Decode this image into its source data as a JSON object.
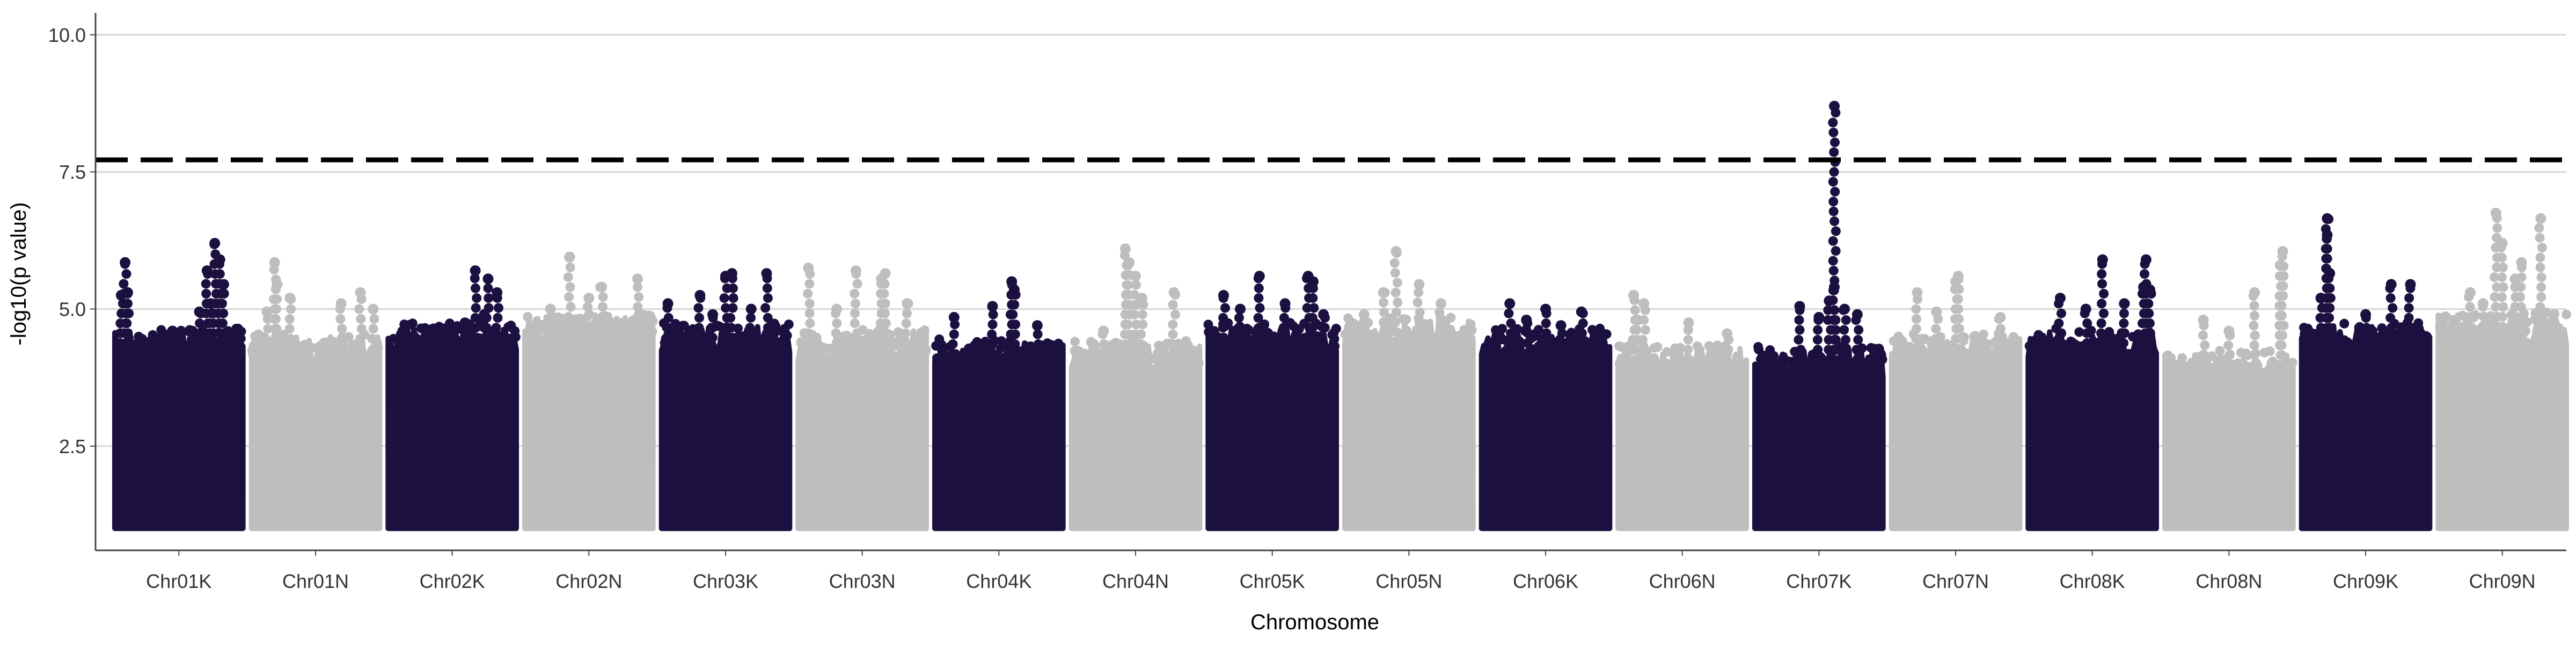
{
  "chart_data": {
    "type": "scatter",
    "xlabel": "Chromosome",
    "ylabel": "-log10(p value)",
    "categories": [
      "Chr01K",
      "Chr01N",
      "Chr02K",
      "Chr02N",
      "Chr03K",
      "Chr03N",
      "Chr04K",
      "Chr04N",
      "Chr05K",
      "Chr05N",
      "Chr06K",
      "Chr06N",
      "Chr07K",
      "Chr07N",
      "Chr08K",
      "Chr08N",
      "Chr09K",
      "Chr09N"
    ],
    "ylim": [
      0.6,
      10.4
    ],
    "yticks": [
      "2.5",
      "5.0",
      "7.5",
      "10.0"
    ],
    "threshold": 7.72,
    "grid": true,
    "colors": {
      "dark": "#1c1040",
      "light": "#bebebe",
      "threshold": "#000000",
      "grid": "#d6d6d6",
      "axis": "#444444"
    },
    "series": [
      {
        "category": "Chr01K",
        "min": 1.0,
        "body_top": 4.2,
        "peaks": [
          [
            0.08,
            5.85
          ],
          [
            0.05,
            5.25
          ],
          [
            0.1,
            5.3
          ],
          [
            0.72,
            5.7
          ],
          [
            0.78,
            6.2
          ],
          [
            0.82,
            5.9
          ],
          [
            0.85,
            5.45
          ],
          [
            0.75,
            5.1
          ],
          [
            0.66,
            4.95
          ],
          [
            0.45,
            4.6
          ],
          [
            0.3,
            4.4
          ]
        ]
      },
      {
        "category": "Chr01N",
        "min": 1.0,
        "body_top": 4.1,
        "peaks": [
          [
            0.18,
            5.85
          ],
          [
            0.2,
            5.45
          ],
          [
            0.12,
            4.95
          ],
          [
            0.3,
            5.2
          ],
          [
            0.7,
            5.1
          ],
          [
            0.85,
            5.3
          ],
          [
            0.95,
            5.0
          ]
        ]
      },
      {
        "category": "Chr02K",
        "min": 1.0,
        "body_top": 4.3,
        "peaks": [
          [
            0.68,
            5.7
          ],
          [
            0.78,
            5.55
          ],
          [
            0.85,
            5.3
          ],
          [
            0.75,
            4.9
          ],
          [
            0.6,
            4.75
          ],
          [
            0.2,
            4.5
          ]
        ]
      },
      {
        "category": "Chr02N",
        "min": 1.0,
        "body_top": 4.5,
        "peaks": [
          [
            0.35,
            5.95
          ],
          [
            0.6,
            5.4
          ],
          [
            0.88,
            5.55
          ],
          [
            0.2,
            5.0
          ],
          [
            0.5,
            5.2
          ]
        ]
      },
      {
        "category": "Chr03K",
        "min": 1.0,
        "body_top": 4.3,
        "peaks": [
          [
            0.5,
            5.6
          ],
          [
            0.55,
            5.65
          ],
          [
            0.82,
            5.65
          ],
          [
            0.3,
            5.25
          ],
          [
            0.05,
            5.1
          ],
          [
            0.7,
            5.0
          ],
          [
            0.4,
            4.9
          ]
        ]
      },
      {
        "category": "Chr03N",
        "min": 1.0,
        "body_top": 4.2,
        "peaks": [
          [
            0.08,
            5.75
          ],
          [
            0.45,
            5.7
          ],
          [
            0.65,
            5.55
          ],
          [
            0.68,
            5.65
          ],
          [
            0.3,
            5.0
          ],
          [
            0.85,
            5.1
          ]
        ]
      },
      {
        "category": "Chr04K",
        "min": 1.0,
        "body_top": 4.0,
        "peaks": [
          [
            0.6,
            5.5
          ],
          [
            0.62,
            5.35
          ],
          [
            0.15,
            4.85
          ],
          [
            0.45,
            5.05
          ],
          [
            0.8,
            4.7
          ]
        ]
      },
      {
        "category": "Chr04N",
        "min": 1.0,
        "body_top": 4.0,
        "peaks": [
          [
            0.42,
            6.1
          ],
          [
            0.45,
            5.85
          ],
          [
            0.5,
            5.6
          ],
          [
            0.55,
            5.2
          ],
          [
            0.8,
            5.3
          ],
          [
            0.25,
            4.6
          ]
        ]
      },
      {
        "category": "Chr05K",
        "min": 1.0,
        "body_top": 4.3,
        "peaks": [
          [
            0.4,
            5.6
          ],
          [
            0.78,
            5.6
          ],
          [
            0.82,
            5.5
          ],
          [
            0.12,
            5.25
          ],
          [
            0.25,
            5.0
          ],
          [
            0.6,
            5.1
          ],
          [
            0.9,
            4.9
          ]
        ]
      },
      {
        "category": "Chr05N",
        "min": 1.0,
        "body_top": 4.4,
        "peaks": [
          [
            0.4,
            6.05
          ],
          [
            0.58,
            5.45
          ],
          [
            0.3,
            5.3
          ],
          [
            0.75,
            5.1
          ],
          [
            0.15,
            4.9
          ]
        ]
      },
      {
        "category": "Chr06K",
        "min": 1.0,
        "body_top": 4.2,
        "peaks": [
          [
            0.22,
            5.1
          ],
          [
            0.5,
            5.0
          ],
          [
            0.78,
            4.95
          ],
          [
            0.35,
            4.8
          ],
          [
            0.62,
            4.7
          ]
        ]
      },
      {
        "category": "Chr06N",
        "min": 1.0,
        "body_top": 3.9,
        "peaks": [
          [
            0.12,
            5.25
          ],
          [
            0.2,
            5.1
          ],
          [
            0.15,
            4.8
          ],
          [
            0.55,
            4.75
          ],
          [
            0.85,
            4.55
          ]
        ]
      },
      {
        "category": "Chr07K",
        "min": 1.0,
        "body_top": 3.9,
        "peaks": [
          [
            0.62,
            8.7
          ],
          [
            0.62,
            5.4
          ],
          [
            0.58,
            5.15
          ],
          [
            0.35,
            5.05
          ],
          [
            0.7,
            5.0
          ],
          [
            0.8,
            4.9
          ],
          [
            0.5,
            4.85
          ]
        ]
      },
      {
        "category": "Chr07N",
        "min": 1.0,
        "body_top": 4.1,
        "peaks": [
          [
            0.2,
            5.3
          ],
          [
            0.5,
            5.5
          ],
          [
            0.52,
            5.6
          ],
          [
            0.35,
            4.95
          ],
          [
            0.85,
            4.85
          ]
        ]
      },
      {
        "category": "Chr08K",
        "min": 1.0,
        "body_top": 4.2,
        "peaks": [
          [
            0.58,
            5.9
          ],
          [
            0.92,
            5.9
          ],
          [
            0.9,
            5.4
          ],
          [
            0.95,
            5.35
          ],
          [
            0.25,
            5.2
          ],
          [
            0.75,
            5.1
          ],
          [
            0.45,
            5.0
          ]
        ]
      },
      {
        "category": "Chr08N",
        "min": 1.0,
        "body_top": 3.8,
        "peaks": [
          [
            0.92,
            6.05
          ],
          [
            0.9,
            5.8
          ],
          [
            0.7,
            5.3
          ],
          [
            0.3,
            4.8
          ],
          [
            0.5,
            4.6
          ]
        ]
      },
      {
        "category": "Chr09K",
        "min": 1.0,
        "body_top": 4.3,
        "peaks": [
          [
            0.2,
            6.65
          ],
          [
            0.2,
            6.35
          ],
          [
            0.22,
            5.65
          ],
          [
            0.7,
            5.45
          ],
          [
            0.85,
            5.45
          ],
          [
            0.15,
            5.2
          ],
          [
            0.5,
            4.9
          ]
        ]
      },
      {
        "category": "Chr09N",
        "min": 1.0,
        "body_top": 4.5,
        "peaks": [
          [
            0.45,
            6.75
          ],
          [
            0.8,
            6.65
          ],
          [
            0.5,
            6.2
          ],
          [
            0.65,
            5.85
          ],
          [
            0.6,
            5.55
          ],
          [
            0.25,
            5.3
          ],
          [
            0.35,
            5.1
          ]
        ]
      }
    ]
  }
}
